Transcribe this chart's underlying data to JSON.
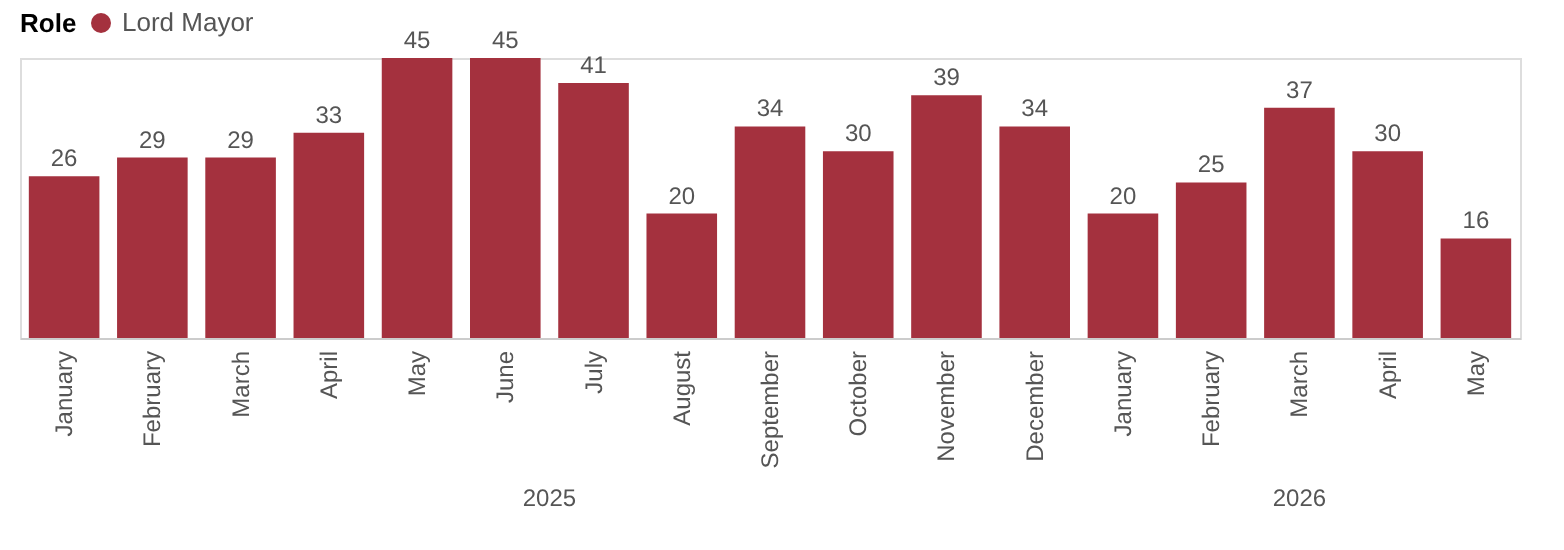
{
  "chart_data": {
    "type": "bar",
    "categories": [
      "January",
      "February",
      "March",
      "April",
      "May",
      "June",
      "July",
      "August",
      "September",
      "October",
      "November",
      "December",
      "January",
      "February",
      "March",
      "April",
      "May"
    ],
    "series": [
      {
        "name": "Lord Mayor",
        "color": "#a4313e",
        "values": [
          26,
          29,
          29,
          33,
          45,
          45,
          41,
          20,
          34,
          30,
          39,
          34,
          20,
          25,
          37,
          30,
          16
        ]
      }
    ],
    "annotations": [
      "2025",
      "2026"
    ],
    "legend_title": "Role",
    "legend": "top left",
    "data_labels": true,
    "grid": false
  }
}
